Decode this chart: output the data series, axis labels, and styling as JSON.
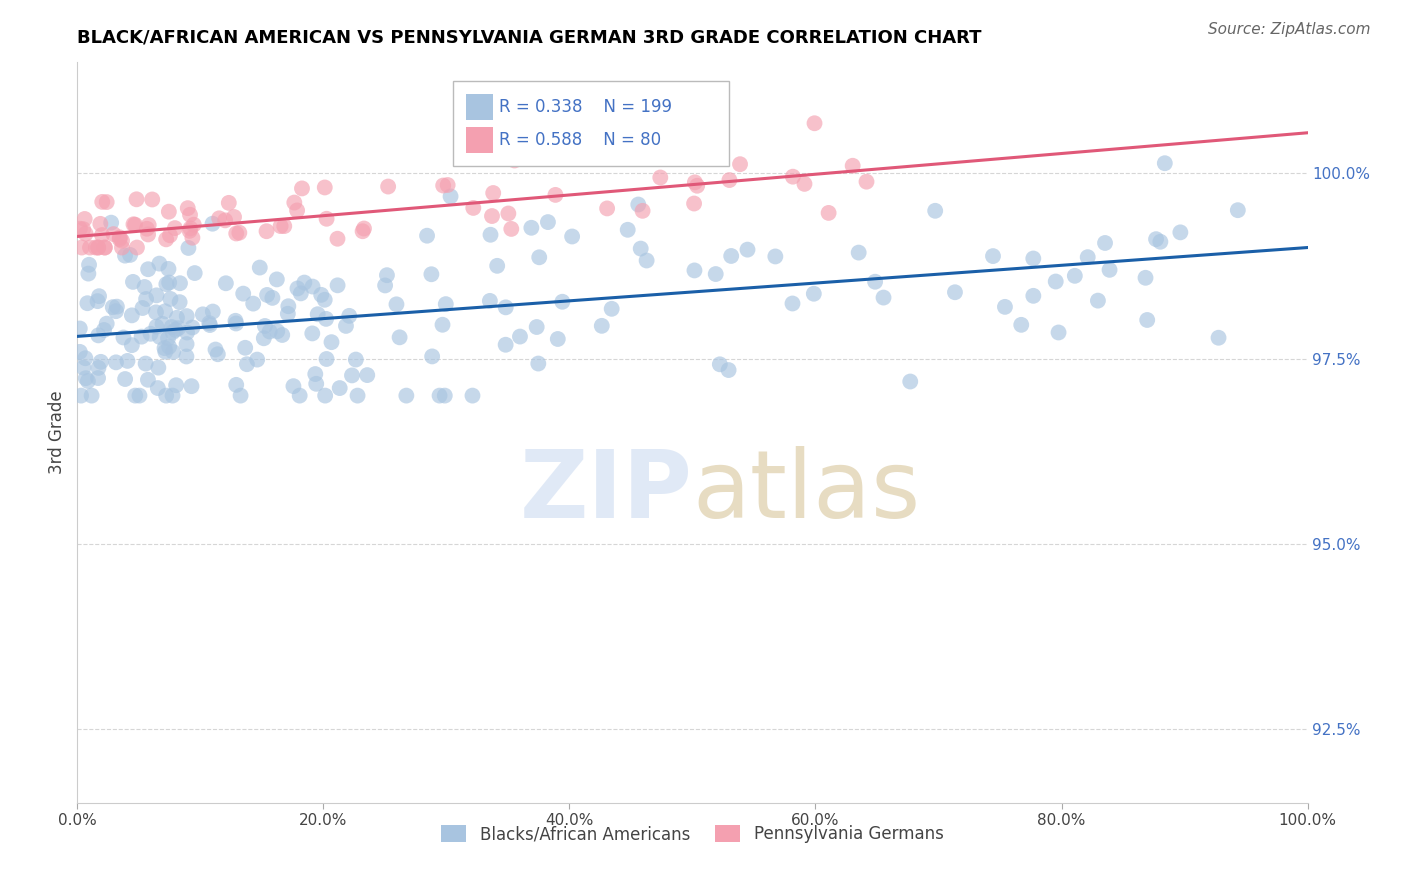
{
  "title": "BLACK/AFRICAN AMERICAN VS PENNSYLVANIA GERMAN 3RD GRADE CORRELATION CHART",
  "source": "Source: ZipAtlas.com",
  "ylabel": "3rd Grade",
  "xlim": [
    0.0,
    100.0
  ],
  "ylim": [
    91.5,
    101.5
  ],
  "yticks": [
    92.5,
    95.0,
    97.5,
    100.0
  ],
  "xticks": [
    0.0,
    20.0,
    40.0,
    60.0,
    80.0,
    100.0
  ],
  "xtick_labels": [
    "0.0%",
    "20.0%",
    "40.0%",
    "60.0%",
    "80.0%",
    "100.0%"
  ],
  "ytick_labels": [
    "92.5%",
    "95.0%",
    "97.5%",
    "100.0%"
  ],
  "blue_R": 0.338,
  "blue_N": 199,
  "pink_R": 0.588,
  "pink_N": 80,
  "blue_color": "#a8c4e0",
  "pink_color": "#f4a0b0",
  "blue_line_color": "#1a5fa8",
  "pink_line_color": "#e05878",
  "legend_blue_label": "Blacks/African Americans",
  "legend_pink_label": "Pennsylvania Germans",
  "watermark_zip_color": "#c8d8f0",
  "watermark_atlas_color": "#d4c090",
  "stats_color": "#4472c4",
  "title_fontsize": 13,
  "source_fontsize": 11,
  "tick_fontsize": 11,
  "ylabel_fontsize": 12,
  "legend_fontsize": 12,
  "stats_fontsize": 12,
  "watermark_fontsize": 68,
  "blue_line_y0": 97.8,
  "blue_line_y1": 99.0,
  "pink_line_y0": 99.15,
  "pink_line_y1": 100.55
}
